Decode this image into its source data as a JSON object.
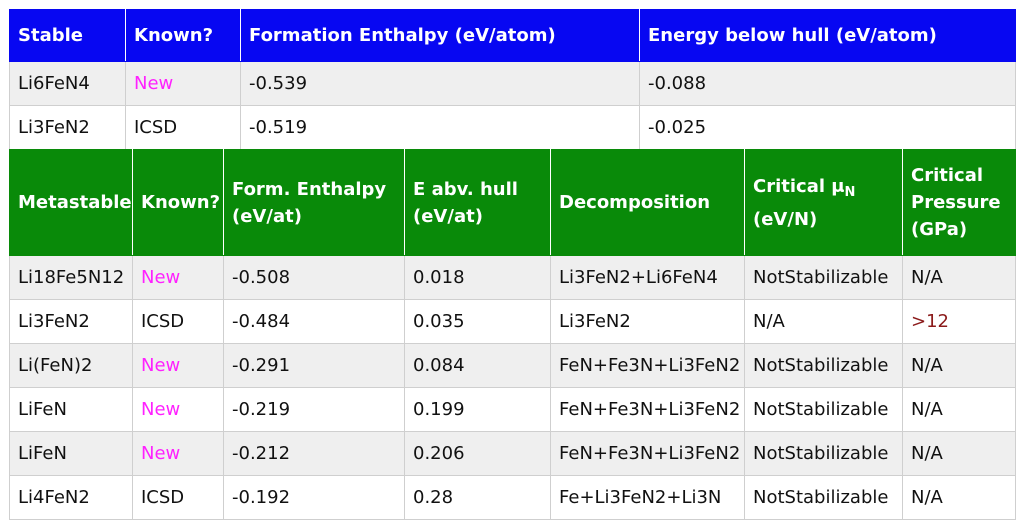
{
  "stable_table": {
    "headers": [
      "Stable",
      "Known?",
      "Formation Enthalpy (eV/atom)",
      "Energy below hull (eV/atom)"
    ],
    "rows": [
      [
        "Li6FeN4",
        "New",
        "-0.539",
        "-0.088"
      ],
      [
        "Li3FeN2",
        "ICSD",
        "-0.519",
        "-0.025"
      ]
    ]
  },
  "metastable_table": {
    "headers": {
      "metastable": "Metastable",
      "known": "Known?",
      "form_enthalpy_line1": "Form. Enthalpy",
      "form_enthalpy_line2": "(eV/at)",
      "e_abv_hull_line1": "E abv. hull",
      "e_abv_hull_line2": "(eV/at)",
      "decomposition": "Decomposition",
      "critical_mu_prefix": "Critical μ",
      "critical_mu_sub": "N",
      "critical_mu_unit": "(eV/N)",
      "critical_pressure_line1": "Critical",
      "critical_pressure_line2": "Pressure",
      "critical_pressure_line3": "(GPa)"
    },
    "rows": [
      [
        "Li18Fe5N12",
        "New",
        "-0.508",
        "0.018",
        "Li3FeN2+Li6FeN4",
        "NotStabilizable",
        "N/A"
      ],
      [
        "Li3FeN2",
        "ICSD",
        "-0.484",
        "0.035",
        "Li3FeN2",
        "N/A",
        ">12"
      ],
      [
        "Li(FeN)2",
        "New",
        "-0.291",
        "0.084",
        "FeN+Fe3N+Li3FeN2",
        "NotStabilizable",
        "N/A"
      ],
      [
        "LiFeN",
        "New",
        "-0.219",
        "0.199",
        "FeN+Fe3N+Li3FeN2",
        "NotStabilizable",
        "N/A"
      ],
      [
        "LiFeN",
        "New",
        "-0.212",
        "0.206",
        "FeN+Fe3N+Li3FeN2",
        "NotStabilizable",
        "N/A"
      ],
      [
        "Li4FeN2",
        "ICSD",
        "-0.192",
        "0.28",
        "Fe+Li3FeN2+Li3N",
        "NotStabilizable",
        "N/A"
      ]
    ]
  },
  "colors": {
    "stable_header_bg": "#0707f2",
    "metastable_header_bg": "#098a09",
    "new_text": "#ff21ff",
    "high_pressure_text": "#8b1a1a"
  }
}
